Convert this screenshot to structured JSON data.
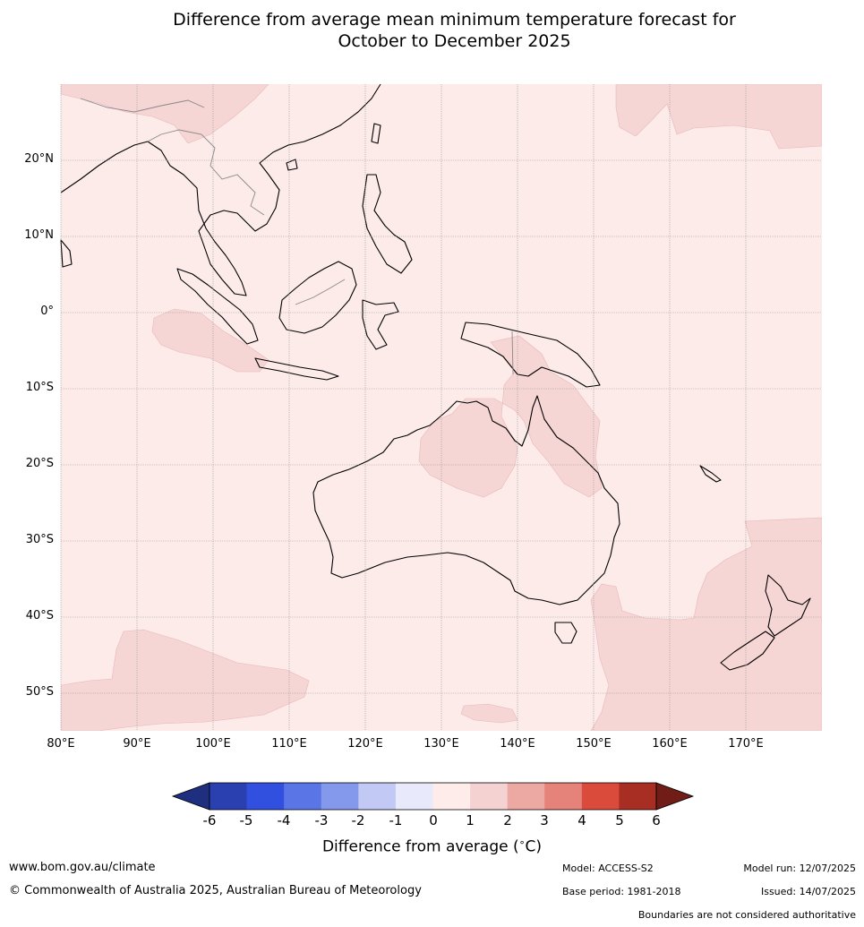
{
  "title": {
    "line1": "Difference from average mean minimum temperature forecast for",
    "line2": "October to December 2025"
  },
  "map": {
    "lat_labels": [
      "20°N",
      "10°N",
      "0°",
      "10°S",
      "20°S",
      "30°S",
      "40°S",
      "50°S"
    ],
    "lon_labels": [
      "80°E",
      "90°E",
      "100°E",
      "110°E",
      "120°E",
      "130°E",
      "140°E",
      "150°E",
      "160°E",
      "170°E"
    ],
    "background_color": "#fcebe9",
    "anomaly_1_2_color": "#f6d5d5",
    "anomaly_2_3_color": "#f2c8c8"
  },
  "colorbar": {
    "ticks": [
      "-6",
      "-5",
      "-4",
      "-3",
      "-2",
      "-1",
      "0",
      "1",
      "2",
      "3",
      "4",
      "5",
      "6"
    ],
    "colors": [
      "#1f2f80",
      "#2a3fb0",
      "#3150e0",
      "#5a75e6",
      "#8499ec",
      "#c2c9f4",
      "#e8eafb",
      "#fdecea",
      "#f5d2d2",
      "#eca8a3",
      "#e5837a",
      "#db4b3c",
      "#a82d22",
      "#711d17"
    ],
    "label": "Difference from average (",
    "unit": "C)",
    "degree_symbol": "∘"
  },
  "footer": {
    "website": "www.bom.gov.au/climate",
    "copyright": "© Commonwealth of Australia 2025, Australian Bureau of Meteorology",
    "model": "Model: ACCESS-S2",
    "model_run": "Model run: 12/07/2025",
    "base_period": "Base period: 1981-2018",
    "issued": "Issued: 14/07/2025",
    "disclaimer": "Boundaries are not considered authoritative"
  }
}
